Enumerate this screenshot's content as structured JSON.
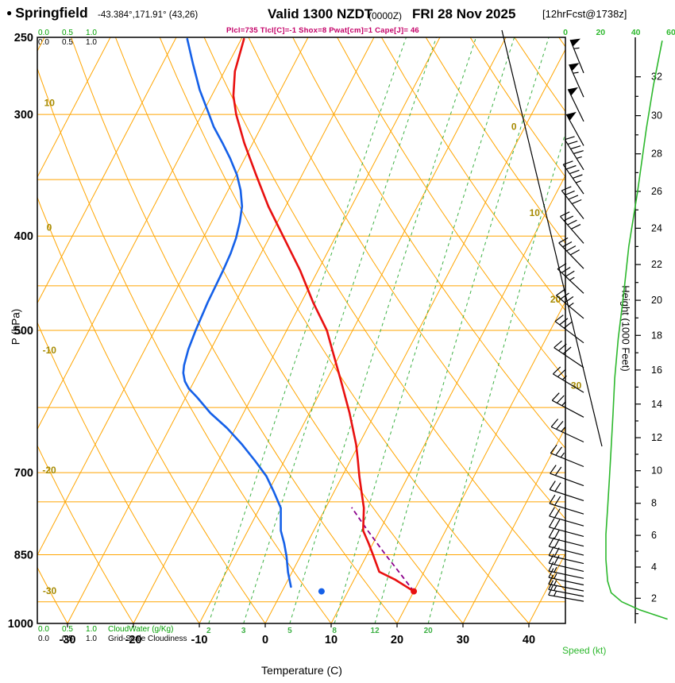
{
  "header": {
    "bullet": "●",
    "station": "Springfield",
    "coords": "-43.384°,171.91° (43,26)",
    "valid_label": "Valid 1300 NZDT",
    "valid_utc": "(0000Z)",
    "valid_date": "FRI 28 Nov 2025",
    "fcst_tag": "[12hrFcst@1738z]",
    "stats": "Plcl=735 Tlcl[C]=-1 Shox=8 Pwat[cm]=1 Cape[J]= 46"
  },
  "axes": {
    "pressure_title": "P (hPa)",
    "pressure_ticks": [
      250,
      300,
      400,
      500,
      700,
      850,
      1000
    ],
    "temp_title": "Temperature (C)",
    "temp_ticks": [
      -30,
      -20,
      -10,
      0,
      10,
      20,
      30,
      40
    ],
    "height_title": "Height (1000 Feet)",
    "height_ticks": [
      2,
      4,
      6,
      8,
      10,
      12,
      14,
      16,
      18,
      20,
      22,
      24,
      26,
      28,
      30,
      32
    ],
    "speed_title": "Speed (kt)",
    "speed_ticks": [
      0,
      20,
      40,
      60
    ],
    "cloud_scale": [
      "0.0",
      "0.5",
      "1.0"
    ],
    "cloudwater_label": "CloudWater (g/Kg)",
    "cloudiness_label": "Grid-Scale Cloudiness"
  },
  "chart_data": {
    "type": "line",
    "variant": "skew-t log-p sounding",
    "xlabel": "Temperature (C)",
    "ylabel": "P (hPa)",
    "pressure_axis": {
      "min": 250,
      "max": 1000,
      "gridlines": [
        300,
        350,
        400,
        450,
        500,
        600,
        700,
        750,
        850,
        950
      ]
    },
    "temp_axis": {
      "isotherm_range": [
        -110,
        40
      ],
      "isotherm_step": 10
    },
    "dry_adiabats": {
      "range": [
        -60,
        130
      ],
      "step": 10,
      "edge_labels": [
        10,
        0,
        -10,
        -20,
        -30
      ]
    },
    "isotherm_exit_labels": [
      0,
      10,
      20,
      30
    ],
    "mixing_ratio_lines": [
      2,
      3,
      5,
      8,
      12,
      20
    ],
    "temperature_profile": [
      [
        927,
        20
      ],
      [
        902,
        16.3
      ],
      [
        885,
        13.2
      ],
      [
        850,
        10.9
      ],
      [
        827,
        9.3
      ],
      [
        803,
        7.5
      ],
      [
        761,
        5.8
      ],
      [
        733,
        4.2
      ],
      [
        706,
        2.6
      ],
      [
        678,
        1.0
      ],
      [
        655,
        -0.4
      ],
      [
        608,
        -3.9
      ],
      [
        564,
        -7.7
      ],
      [
        523,
        -11.6
      ],
      [
        500,
        -13.9
      ],
      [
        468,
        -18.2
      ],
      [
        434,
        -22.7
      ],
      [
        402,
        -27.7
      ],
      [
        373,
        -32.6
      ],
      [
        346,
        -37
      ],
      [
        321,
        -41.3
      ],
      [
        300,
        -44.8
      ],
      [
        287,
        -46.7
      ],
      [
        271,
        -48.4
      ],
      [
        251,
        -49.6
      ]
    ],
    "dewpoint_profile": [
      [
        917,
        1
      ],
      [
        886,
        -0.6
      ],
      [
        853,
        -2.1
      ],
      [
        827,
        -3.5
      ],
      [
        803,
        -5
      ],
      [
        761,
        -6.8
      ],
      [
        733,
        -9.1
      ],
      [
        706,
        -11.5
      ],
      [
        681,
        -14.4
      ],
      [
        655,
        -17.7
      ],
      [
        630,
        -21.3
      ],
      [
        608,
        -25
      ],
      [
        585,
        -28.4
      ],
      [
        574,
        -30.2
      ],
      [
        564,
        -31.4
      ],
      [
        553,
        -32.3
      ],
      [
        543,
        -32.8
      ],
      [
        523,
        -33.4
      ],
      [
        500,
        -33.8
      ],
      [
        468,
        -34.2
      ],
      [
        450,
        -34.3
      ],
      [
        434,
        -34.4
      ],
      [
        417,
        -34.6
      ],
      [
        402,
        -35
      ],
      [
        387,
        -35.7
      ],
      [
        373,
        -36.6
      ],
      [
        359,
        -38.1
      ],
      [
        346,
        -39.9
      ],
      [
        333,
        -42.2
      ],
      [
        321,
        -44.6
      ],
      [
        309,
        -47.2
      ],
      [
        300,
        -48.9
      ],
      [
        283,
        -52.3
      ],
      [
        266,
        -55.4
      ],
      [
        251,
        -58.2
      ]
    ],
    "parcel_trace": [
      [
        927,
        20
      ],
      [
        880,
        15.7
      ],
      [
        850,
        12.8
      ],
      [
        800,
        7.9
      ],
      [
        760,
        3.9
      ]
    ],
    "surface_dots": {
      "pressure": 927,
      "temperature": 20,
      "dewpoint": 6
    },
    "wind_barbs": [
      [
        272,
        57,
        338
      ],
      [
        288,
        55,
        336
      ],
      [
        305,
        52,
        334
      ],
      [
        323,
        50,
        331
      ],
      [
        342,
        47,
        328
      ],
      [
        362,
        45,
        325
      ],
      [
        384,
        42,
        322
      ],
      [
        407,
        40,
        319
      ],
      [
        432,
        38,
        316
      ],
      [
        458,
        35,
        313
      ],
      [
        486,
        33,
        310
      ],
      [
        515,
        30,
        307
      ],
      [
        546,
        28,
        304
      ],
      [
        579,
        27,
        301
      ],
      [
        614,
        25,
        298
      ],
      [
        651,
        24,
        295
      ],
      [
        690,
        23,
        292
      ],
      [
        722,
        22,
        290
      ],
      [
        748,
        21,
        288
      ],
      [
        772,
        21,
        287
      ],
      [
        794,
        20,
        286
      ],
      [
        814,
        20,
        285
      ],
      [
        833,
        19,
        284
      ],
      [
        851,
        19,
        284
      ],
      [
        868,
        18,
        283
      ],
      [
        884,
        18,
        283
      ],
      [
        899,
        17,
        282
      ],
      [
        913,
        17,
        282
      ],
      [
        926,
        16,
        281
      ],
      [
        938,
        16,
        281
      ],
      [
        949,
        15,
        280
      ]
    ],
    "speed_profile": [
      [
        990,
        58
      ],
      [
        968,
        42
      ],
      [
        950,
        32
      ],
      [
        930,
        26
      ],
      [
        905,
        24
      ],
      [
        860,
        23
      ],
      [
        810,
        23
      ],
      [
        760,
        24
      ],
      [
        710,
        25
      ],
      [
        660,
        26
      ],
      [
        610,
        27
      ],
      [
        560,
        28
      ],
      [
        510,
        30
      ],
      [
        460,
        33
      ],
      [
        410,
        36
      ],
      [
        360,
        41
      ],
      [
        310,
        46
      ],
      [
        280,
        50
      ],
      [
        252,
        55
      ]
    ],
    "colors": {
      "grid": "#ffa500",
      "mixing": "#3cb043",
      "temperature": "#e81010",
      "dewpoint": "#1560e8",
      "parcel": "#8b008b",
      "speed": "#2db82d",
      "olive": "#a68a00",
      "stats": "#c40068",
      "scale_green": "#00a000"
    }
  }
}
